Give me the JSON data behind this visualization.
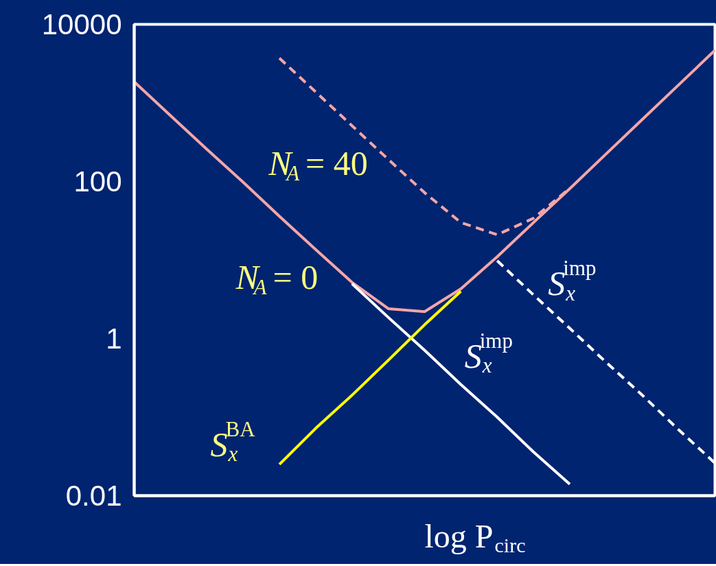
{
  "chart_data": {
    "type": "line",
    "xlabel": "log P$_{circ}$",
    "categories": [
      null,
      null,
      null,
      null,
      null,
      null,
      null,
      null,
      null,
      null,
      null,
      null,
      null,
      null,
      null,
      null,
      null
    ],
    "log": "y",
    "ylim": [
      0.01,
      10000
    ],
    "yticks": [
      0.01,
      1,
      100,
      10000
    ],
    "grid": false,
    "tick_labels": "y",
    "marker": "none",
    "series": [
      {
        "color": "#f4a6a6",
        "line_style": "solid",
        "values": [
          1860,
          690,
          257,
          98,
          36,
          13.6,
          5.2,
          2.4,
          2.2,
          4.3,
          11,
          30,
          81,
          224,
          617,
          1700,
          4680
        ]
      },
      {
        "color": "#f4a6a6",
        "line_style": "dashed",
        "values": [
          null,
          null,
          null,
          null,
          3715,
          1380,
          513,
          191,
          72,
          30,
          21,
          34,
          82,
          null,
          null,
          null,
          null
        ]
      },
      {
        "name": "S$^{imp}$$_{x}$",
        "color": "#ffffff",
        "line_style": "solid",
        "values": [
          null,
          null,
          null,
          null,
          null,
          null,
          5.0,
          1.86,
          0.71,
          0.26,
          0.1,
          0.036,
          0.014,
          null,
          null,
          null,
          null
        ]
      },
      {
        "name": "S$^{imp}$$_{x}$",
        "color": "#ffffff",
        "line_style": "dashed",
        "values": [
          null,
          null,
          null,
          null,
          null,
          null,
          null,
          null,
          null,
          null,
          9.8,
          3.6,
          1.35,
          0.5,
          0.19,
          0.069,
          0.026
        ]
      },
      {
        "name": "S$^{BA}$$_{x}$",
        "color": "#ffff00",
        "line_style": "solid",
        "values": [
          null,
          null,
          null,
          null,
          0.025,
          0.072,
          0.19,
          0.53,
          1.5,
          4.0,
          null,
          null,
          null,
          null,
          null,
          null,
          null
        ]
      }
    ],
    "annotations": [
      "N$_{A}$ = 40",
      "N$_{A}$ = 0"
    ]
  }
}
